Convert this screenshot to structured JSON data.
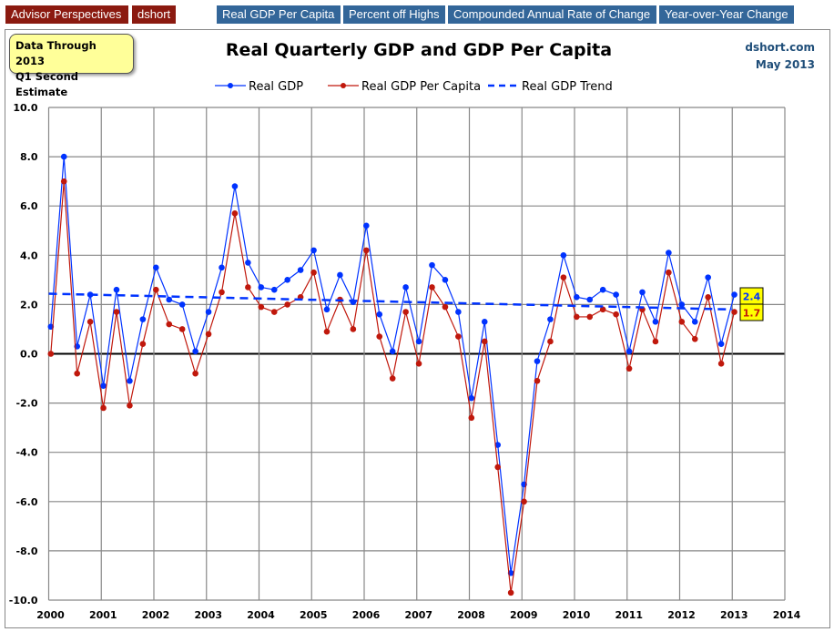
{
  "nav": {
    "brand": "Advisor Perspectives",
    "author": "dshort",
    "links": [
      "Real GDP Per Capita",
      "Percent off Highs",
      "Compounded Annual Rate of Change",
      "Year-over-Year Change"
    ]
  },
  "note": {
    "line1": "Data Through 2013",
    "line2": "Q1 Second Estimate"
  },
  "source": {
    "site": "dshort.com",
    "date": "May 2013"
  },
  "chart_data": {
    "type": "line",
    "title": "Real Quarterly GDP and GDP Per Capita",
    "xlabel": "",
    "ylabel": "",
    "xlim": [
      2000,
      2014
    ],
    "ylim": [
      -10,
      10
    ],
    "x_ticks": [
      "2000",
      "2001",
      "2002",
      "2003",
      "2004",
      "2005",
      "2006",
      "2007",
      "2008",
      "2009",
      "2010",
      "2011",
      "2012",
      "2013",
      "2014"
    ],
    "y_ticks": [
      "10.0",
      "8.0",
      "6.0",
      "4.0",
      "2.0",
      "0.0",
      "-2.0",
      "-4.0",
      "-6.0",
      "-8.0",
      "-10.0"
    ],
    "grid": true,
    "legend_position": "top-center",
    "x_quarters_start": "2000 Q1",
    "series": [
      {
        "name": "Real GDP",
        "color": "#0033ff",
        "style": "line-markers",
        "values": [
          1.1,
          8.0,
          0.3,
          2.4,
          -1.3,
          2.6,
          -1.1,
          1.4,
          3.5,
          2.2,
          2.0,
          0.1,
          1.7,
          3.5,
          6.8,
          3.7,
          2.7,
          2.6,
          3.0,
          3.4,
          4.2,
          1.8,
          3.2,
          2.1,
          5.2,
          1.6,
          0.1,
          2.7,
          0.5,
          3.6,
          3.0,
          1.7,
          -1.8,
          1.3,
          -3.7,
          -8.9,
          -5.3,
          -0.3,
          1.4,
          4.0,
          2.3,
          2.2,
          2.6,
          2.4,
          0.1,
          2.5,
          1.3,
          4.1,
          2.0,
          1.3,
          3.1,
          0.4,
          2.4
        ]
      },
      {
        "name": "Real GDP Per Capita",
        "color": "#c0180c",
        "style": "line-markers",
        "values": [
          0.0,
          7.0,
          -0.8,
          1.3,
          -2.2,
          1.7,
          -2.1,
          0.4,
          2.6,
          1.2,
          1.0,
          -0.8,
          0.8,
          2.5,
          5.7,
          2.7,
          1.9,
          1.7,
          2.0,
          2.3,
          3.3,
          0.9,
          2.2,
          1.0,
          4.2,
          0.7,
          -1.0,
          1.7,
          -0.4,
          2.7,
          1.9,
          0.7,
          -2.6,
          0.5,
          -4.6,
          -9.7,
          -6.0,
          -1.1,
          0.5,
          3.1,
          1.5,
          1.5,
          1.8,
          1.6,
          -0.6,
          1.8,
          0.5,
          3.3,
          1.3,
          0.6,
          2.3,
          -0.4,
          1.7
        ]
      },
      {
        "name": "Real GDP Trend",
        "color": "#0033ff",
        "style": "dashed",
        "x": [
          2000,
          2013
        ],
        "values": [
          2.44,
          1.8
        ]
      }
    ],
    "annotations": [
      {
        "text": "2.4",
        "color": "#0033ff",
        "background": "#ffff00"
      },
      {
        "text": "1.7",
        "color": "#c0180c",
        "background": "#ffff00"
      }
    ]
  }
}
